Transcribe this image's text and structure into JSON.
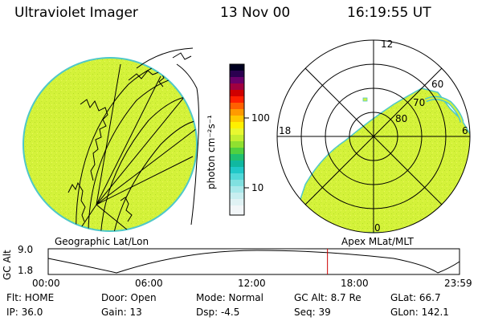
{
  "header": {
    "instrument": "Ultraviolet Imager",
    "date": "13 Nov 00",
    "time": "16:19:55 UT"
  },
  "colorbar": {
    "unit_label": "photon cm⁻²s⁻¹",
    "tick_100": "100",
    "tick_10": "10"
  },
  "left_panel": {
    "caption": "Geographic Lat/Lon"
  },
  "right_panel": {
    "caption": "Apex MLat/MLT",
    "mlt_top": "12",
    "mlt_left": "18",
    "mlt_right": "6",
    "mlt_bottom": "0",
    "lat_60": "60",
    "lat_70": "70",
    "lat_80": "80"
  },
  "altitude_plot": {
    "ylabel": "GC Alt",
    "y_top": "9.0",
    "y_bottom": "1.8",
    "x_ticks": [
      "00:00",
      "06:00",
      "12:00",
      "18:00",
      "23:59"
    ],
    "current_time_fraction": 0.679
  },
  "info": {
    "flt": "Flt: HOME",
    "ip": "IP: 36.0",
    "door": "Door: Open",
    "gain": "Gain: 13",
    "mode": "Mode: Normal",
    "dsp": "Dsp:    -4.5",
    "gcalt": "GC Alt: 8.7 Re",
    "seq": "Seq: 39",
    "glat": "GLat:   66.7",
    "glon": "GLon: 142.1"
  },
  "colors": {
    "image_fill": "#d4f23a",
    "image_edge": "#4fc8c8",
    "current_marker": "#cc0000"
  }
}
